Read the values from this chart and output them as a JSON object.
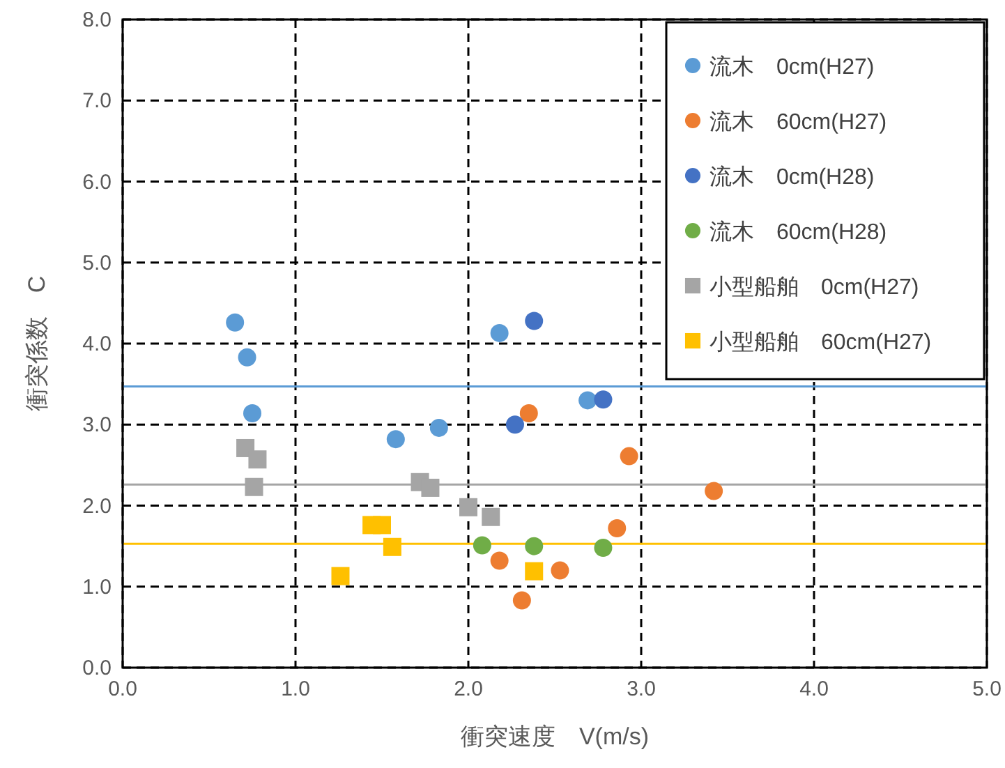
{
  "chart_data": {
    "type": "scatter",
    "xlabel": "衝突速度　V(m/s)",
    "ylabel": "衝突係数　C",
    "xlim": [
      0,
      5
    ],
    "ylim": [
      0,
      8
    ],
    "xticks": [
      {
        "value": 0,
        "label": "0.0"
      },
      {
        "value": 1,
        "label": "1.0"
      },
      {
        "value": 2,
        "label": "2.0"
      },
      {
        "value": 3,
        "label": "3.0"
      },
      {
        "value": 4,
        "label": "4.0"
      },
      {
        "value": 5,
        "label": "5.0"
      }
    ],
    "yticks": [
      {
        "value": 0,
        "label": "0.0"
      },
      {
        "value": 1,
        "label": "1.0"
      },
      {
        "value": 2,
        "label": "2.0"
      },
      {
        "value": 3,
        "label": "3.0"
      },
      {
        "value": 4,
        "label": "4.0"
      },
      {
        "value": 5,
        "label": "5.0"
      },
      {
        "value": 6,
        "label": "6.0"
      },
      {
        "value": 7,
        "label": "7.0"
      },
      {
        "value": 8,
        "label": "8.0"
      }
    ],
    "grid": true,
    "legend": "top right",
    "series": [
      {
        "name": "流木　0cm(H27)",
        "color": "#5b9bd5",
        "marker": "circle",
        "x": [
          0.65,
          0.72,
          0.75,
          1.58,
          1.83,
          2.18,
          2.69
        ],
        "values": [
          4.26,
          3.83,
          3.14,
          2.82,
          2.96,
          4.13,
          3.3
        ]
      },
      {
        "name": "流木　60cm(H27)",
        "color": "#ed7d31",
        "marker": "circle",
        "x": [
          2.35,
          2.93,
          3.42,
          2.86,
          2.18,
          2.53,
          2.31
        ],
        "values": [
          3.14,
          2.61,
          2.18,
          1.72,
          1.32,
          1.2,
          0.83
        ]
      },
      {
        "name": "流木　0cm(H28)",
        "color": "#4472c4",
        "marker": "circle",
        "x": [
          2.38,
          2.27,
          2.78
        ],
        "values": [
          4.28,
          3.0,
          3.31
        ]
      },
      {
        "name": "流木　60cm(H28)",
        "color": "#70ad47",
        "marker": "circle",
        "x": [
          2.08,
          2.38,
          2.78
        ],
        "values": [
          1.51,
          1.5,
          1.48
        ]
      },
      {
        "name": "小型船舶　0cm(H27)",
        "color": "#a5a5a5",
        "marker": "square",
        "x": [
          0.71,
          0.78,
          0.76,
          1.72,
          1.78,
          2.0,
          2.13
        ],
        "values": [
          2.71,
          2.57,
          2.23,
          2.29,
          2.22,
          1.98,
          1.86
        ]
      },
      {
        "name": "小型船舶　60cm(H27)",
        "color": "#ffc000",
        "marker": "square",
        "x": [
          1.44,
          1.5,
          1.56,
          1.26,
          2.38
        ],
        "values": [
          1.76,
          1.76,
          1.49,
          1.13,
          1.19
        ]
      }
    ],
    "ref_lines": [
      {
        "axis": "y",
        "value": 3.47,
        "color": "#5b9bd5",
        "line_style": "solid"
      },
      {
        "axis": "y",
        "value": 2.26,
        "color": "#a5a5a5",
        "line_style": "solid"
      },
      {
        "axis": "y",
        "value": 1.53,
        "color": "#ffc000",
        "line_style": "solid"
      }
    ]
  }
}
